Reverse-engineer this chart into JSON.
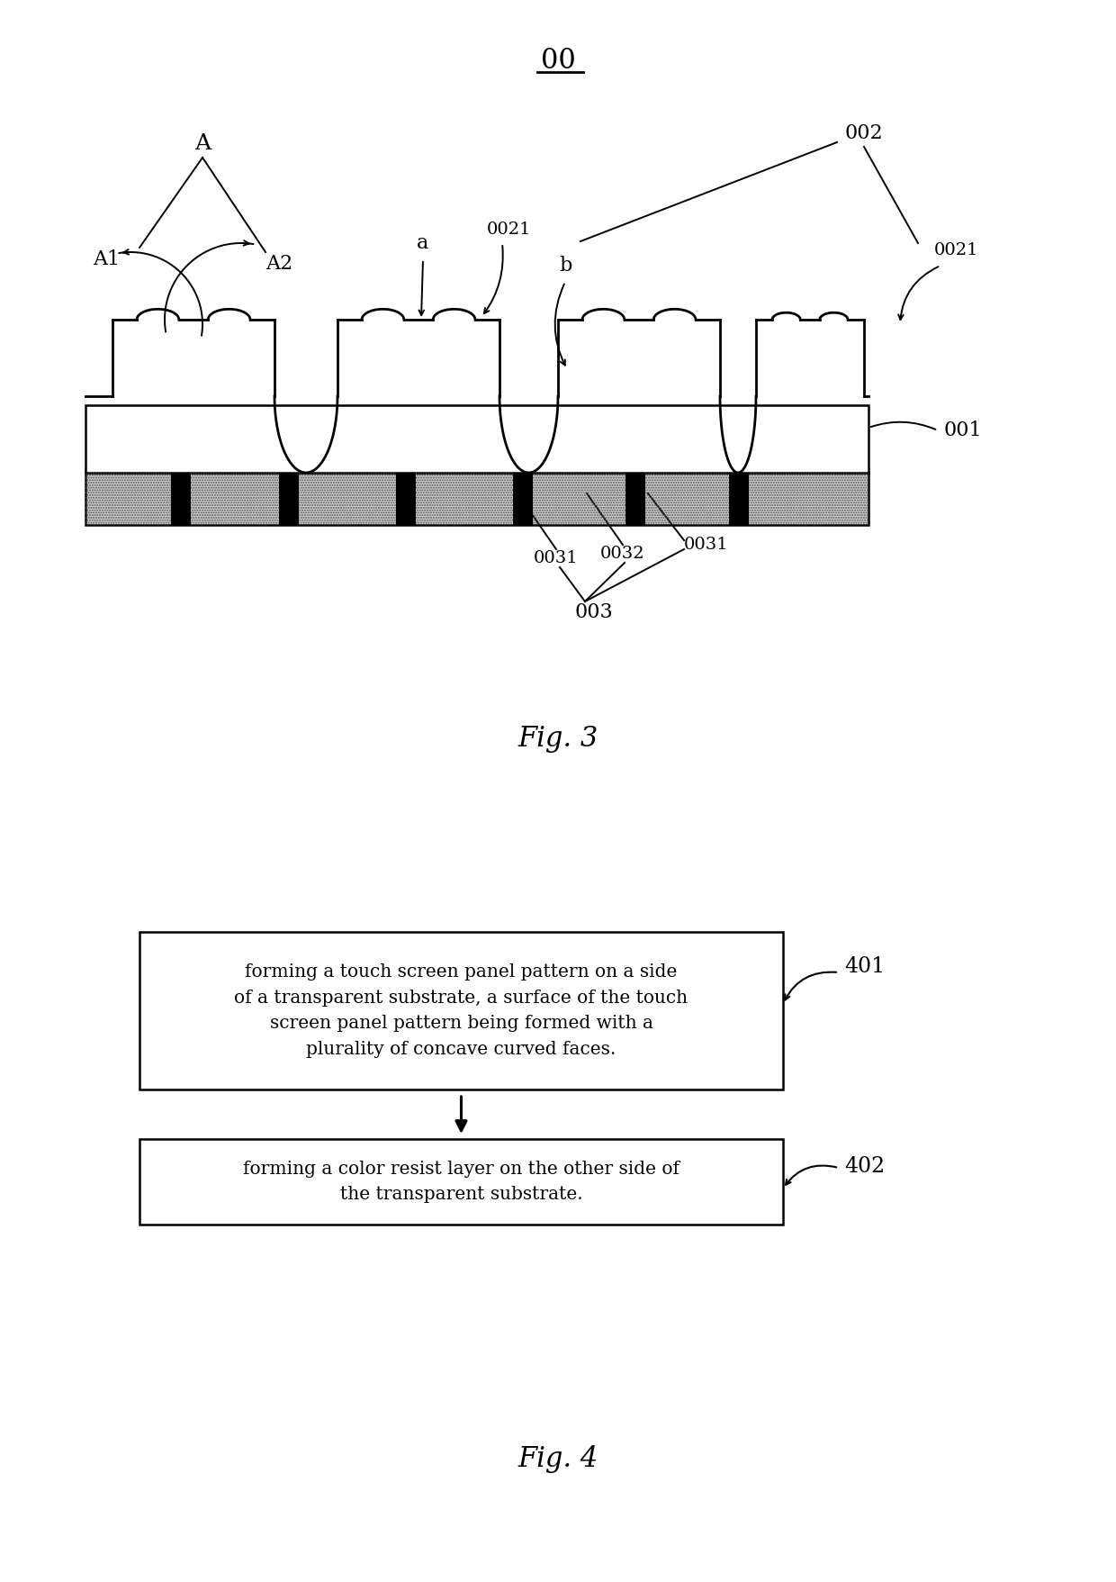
{
  "bg_color": "#ffffff",
  "fig_width": 12.4,
  "fig_height": 17.57,
  "fig3_label": "Fig. 3",
  "fig4_label": "Fig. 4",
  "main_label": "00",
  "box401_text": "forming a touch screen panel pattern on a side\nof a transparent substrate, a surface of the touch\nscreen panel pattern being formed with a\nplurality of concave curved faces.",
  "box402_text": "forming a color resist layer on the other side of\nthe transparent substrate.",
  "label_401": "401",
  "label_402": "402",
  "label_001": "001",
  "label_002": "002",
  "label_0021_left": "0021",
  "label_0021_right": "0021",
  "label_003": "003",
  "label_0031_left": "0031",
  "label_0031_right": "0031",
  "label_0032": "0032",
  "label_A": "A",
  "label_A1": "A1",
  "label_A2": "A2",
  "label_a": "a",
  "label_b": "b"
}
